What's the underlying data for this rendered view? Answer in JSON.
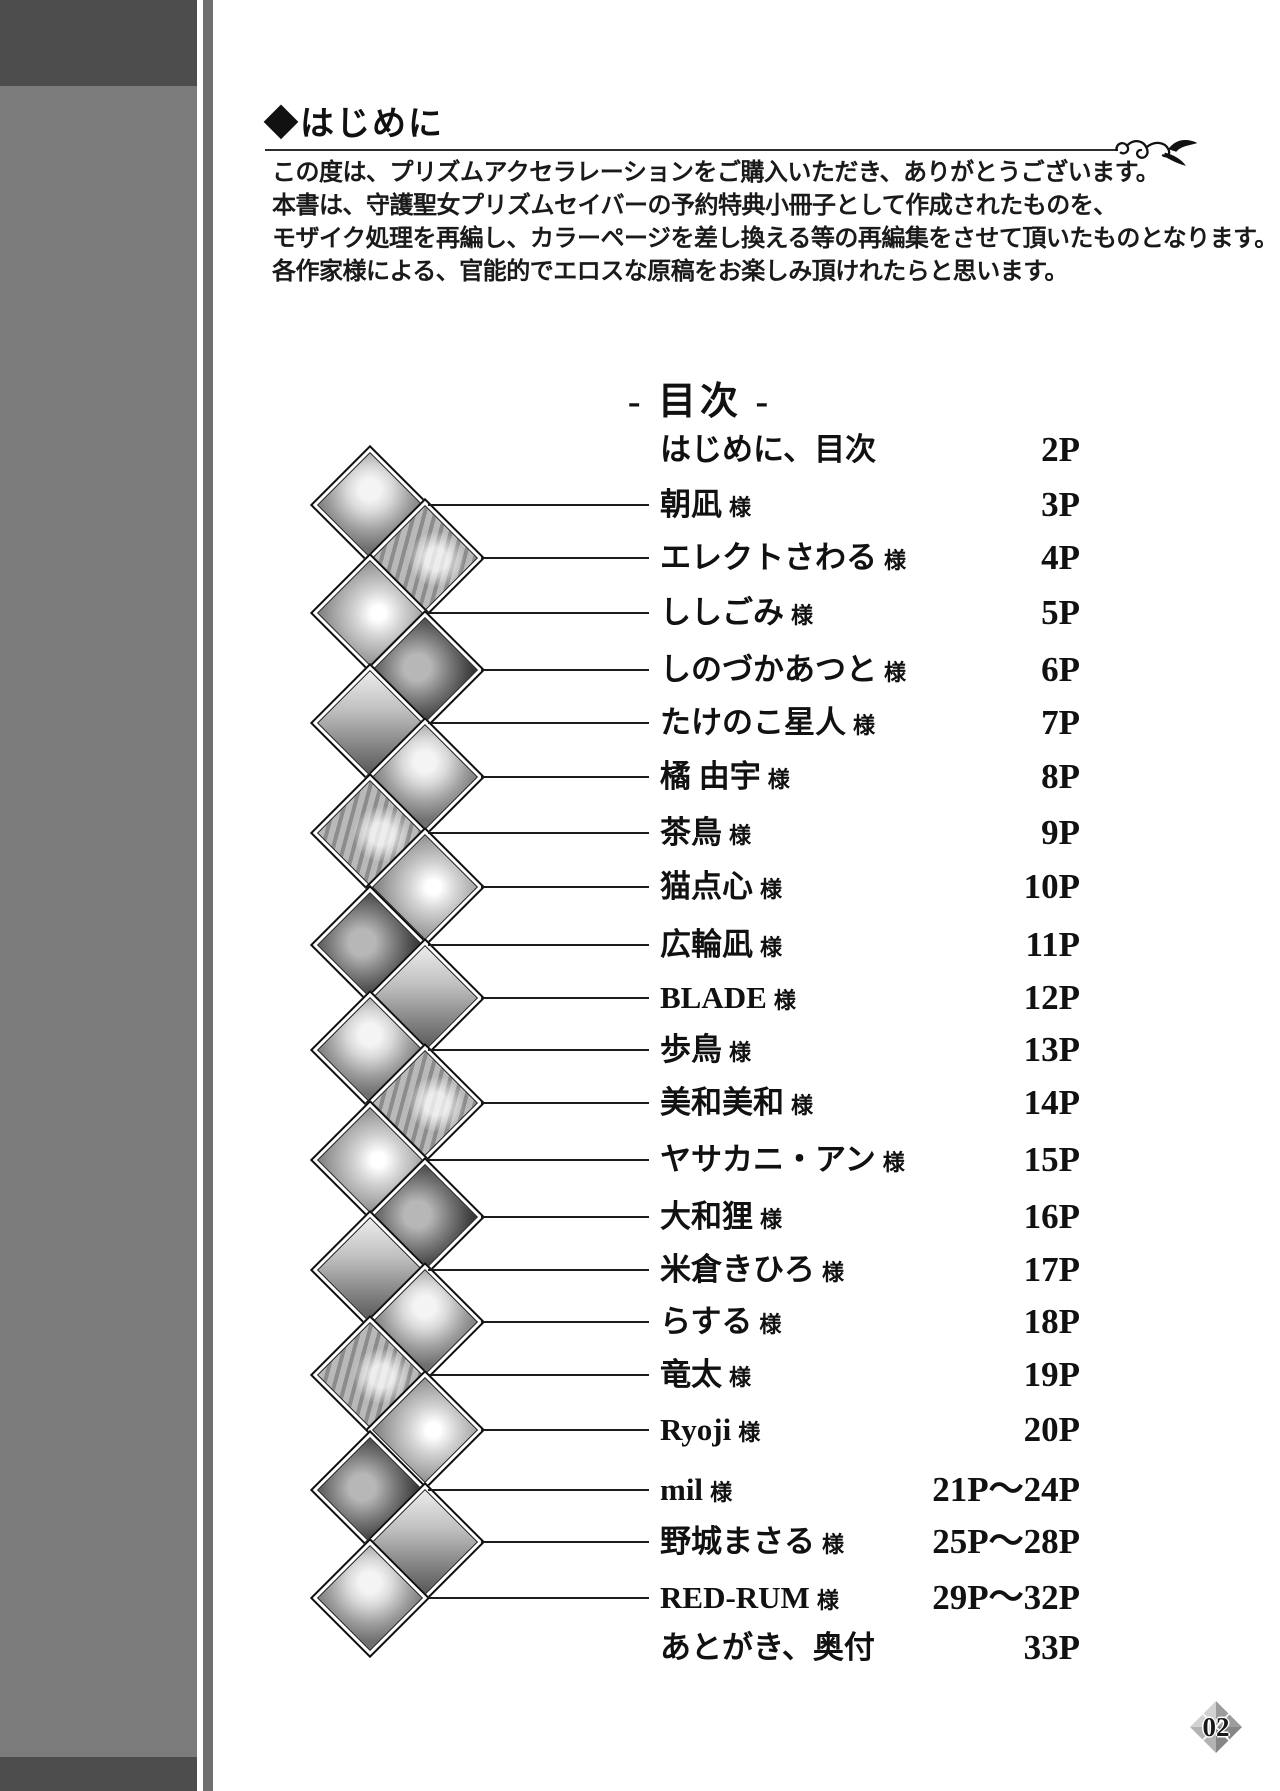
{
  "page": {
    "number_badge": "02"
  },
  "colors": {
    "side_band": "#7b7b7b",
    "side_band_shadow": "#4d4d4d",
    "side_stripe": "#6f6f6f",
    "ink": "#141414"
  },
  "icons": {
    "ornament": "floral-flourish-icon",
    "thumbnail_placeholder": "artist-thumbnail"
  },
  "intro": {
    "heading": "◆はじめに",
    "paragraph_lines": [
      "この度は、プリズムアクセラレーションをご購入いただき、ありがとうございます。",
      "本書は、守護聖女プリズムセイバーの予約特典小冊子として作成されたものを、",
      "モザイク処理を再編し、カラーページを差し換える等の再編集をさせて頂いたものとなります。",
      "各作家様による、官能的でエロスな原稿をお楽しみ頂けれたらと思います。"
    ]
  },
  "toc": {
    "title": "- 目次 -",
    "honorific": "様",
    "entries": [
      {
        "name": "はじめに、目次",
        "honorific": "",
        "pages": "2P",
        "thumb": false
      },
      {
        "name": "朝凪",
        "honorific": "様",
        "pages": "3P",
        "thumb": true
      },
      {
        "name": "エレクトさわる",
        "honorific": "様",
        "pages": "4P",
        "thumb": true
      },
      {
        "name": "ししごみ",
        "honorific": "様",
        "pages": "5P",
        "thumb": true
      },
      {
        "name": "しのづかあつと",
        "honorific": "様",
        "pages": "6P",
        "thumb": true
      },
      {
        "name": "たけのこ星人",
        "honorific": "様",
        "pages": "7P",
        "thumb": true
      },
      {
        "name": "橘 由宇",
        "honorific": "様",
        "pages": "8P",
        "thumb": true
      },
      {
        "name": "茶鳥",
        "honorific": "様",
        "pages": "9P",
        "thumb": true
      },
      {
        "name": "猫点心",
        "honorific": "様",
        "pages": "10P",
        "thumb": true
      },
      {
        "name": "広輪凪",
        "honorific": "様",
        "pages": "11P",
        "thumb": true
      },
      {
        "name": "BLADE",
        "honorific": "様",
        "pages": "12P",
        "thumb": true
      },
      {
        "name": "歩鳥",
        "honorific": "様",
        "pages": "13P",
        "thumb": true
      },
      {
        "name": "美和美和",
        "honorific": "様",
        "pages": "14P",
        "thumb": true
      },
      {
        "name": "ヤサカニ・アン",
        "honorific": "様",
        "pages": "15P",
        "thumb": true
      },
      {
        "name": "大和狸",
        "honorific": "様",
        "pages": "16P",
        "thumb": true
      },
      {
        "name": "米倉きひろ",
        "honorific": "様",
        "pages": "17P",
        "thumb": true
      },
      {
        "name": "らする",
        "honorific": "様",
        "pages": "18P",
        "thumb": true
      },
      {
        "name": "竜太",
        "honorific": "様",
        "pages": "19P",
        "thumb": true
      },
      {
        "name": "Ryoji",
        "honorific": "様",
        "pages": "20P",
        "thumb": true
      },
      {
        "name": "mil",
        "honorific": "様",
        "pages": "21P〜24P",
        "thumb": true
      },
      {
        "name": "野城まさる",
        "honorific": "様",
        "pages": "25P〜28P",
        "thumb": true
      },
      {
        "name": "RED-RUM",
        "honorific": "様",
        "pages": "29P〜32P",
        "thumb": true
      },
      {
        "name": "あとがき、奥付",
        "honorific": "",
        "pages": "33P",
        "thumb": false
      }
    ]
  }
}
